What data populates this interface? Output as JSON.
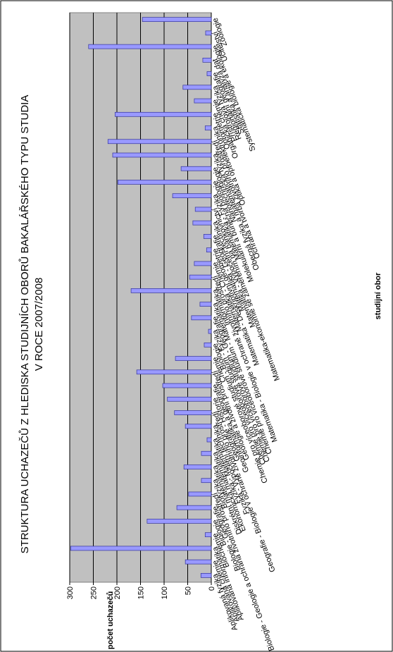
{
  "chart_data": {
    "type": "bar",
    "title": "STRUKTURA UCHAZEČŮ Z HLEDISKA STUDIJNÍCH OBORŮ BAKALÁŘSKÉHO TYPU STUDIA",
    "subtitle": "V ROCE 2007/2008",
    "y_label": "počet uchazečů",
    "x_label": "studijní obor",
    "categories": [
      "Aplikovaná fyzika",
      "Aplikovaná chemie",
      "Aplikovaná informatika",
      "Biochemie",
      "Biologie",
      "Biologie - Geografie",
      "Biologie - Geologie a ochrana životního prostředí",
      "Biofyzika",
      "Diskrétní matematika",
      "Ekonomická matematika",
      "Fyzika - Matematika",
      "Fyzika - Výpočetní technika",
      "Geografie - Biologie v ochraně životního prostředí",
      "Geografie - Historie",
      "Geoinformatika a geografie",
      "Geologie a životní prostředí",
      "Chemie",
      "Chemie pro víceoborové studium - Biologie",
      "Chemie pro víceoborové studium - Fyzika",
      "Chemie pro víceoborové studium - Geografie",
      "Chemie pro víceoborové studium - Matematika",
      "Informatika",
      "Matematika - Biologie v ochraně životního prostředí",
      "Matematika - Chemie",
      "Matematika - Deskriptivní geometrie",
      "Matematika - Geografie",
      "Matematika - Výpočetní technika",
      "Matematika-ekonomie se zaměřením na bankovnictví",
      "Matematika - Fyzika",
      "Molekulární a buněčná biologie",
      "Nanotechnologie",
      "Obecná fyzika a matematická fyzika",
      "Ochrana a tvorba životního prostředí",
      "Optika a optoelektronika",
      "Optometrie",
      "Organická chemie",
      "Přístrojová fyzika",
      "Regionální geografie",
      "Statistika a analýza dat",
      "Systematická biologie a ekologie",
      "Učitelství",
      "Zoologie"
    ],
    "values": [
      22,
      55,
      298,
      13,
      136,
      73,
      48,
      21,
      58,
      21,
      9,
      55,
      78,
      93,
      103,
      158,
      76,
      15,
      6,
      42,
      24,
      170,
      46,
      36,
      10,
      16,
      39,
      34,
      82,
      198,
      64,
      209,
      219,
      13,
      204,
      36,
      60,
      9,
      18,
      260,
      12,
      146
    ],
    "color": "#9999ff",
    "ylim": [
      0,
      300
    ],
    "yticks": [
      0,
      50,
      100,
      150,
      200,
      250,
      300
    ],
    "grid": true
  }
}
